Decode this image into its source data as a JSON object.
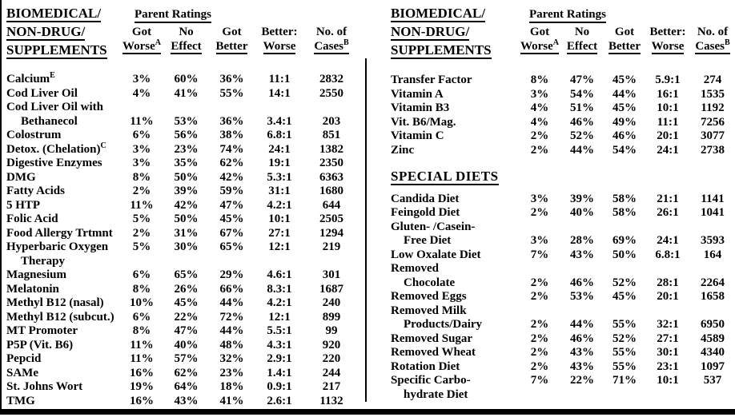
{
  "colors": {
    "ink": "#000000",
    "paper": "#ffffff"
  },
  "left_table": {
    "title_lines": [
      "BIOMEDICAL/",
      "NON-DRUG/",
      "SUPPLEMENTS"
    ],
    "group_header": "Parent Ratings",
    "columns": [
      {
        "line1": "Got",
        "line2": "Worse",
        "sup": "A"
      },
      {
        "line1": "No",
        "line2": "Effect"
      },
      {
        "line1": "Got",
        "line2": "Better"
      },
      {
        "line1": "Better:",
        "line2": "Worse"
      },
      {
        "line1": "No. of",
        "line2": "Cases",
        "sup": "B"
      }
    ],
    "sections": [
      {
        "rows": [
          {
            "name": "Calcium",
            "sup": "E",
            "values": [
              "3%",
              "60%",
              "36%",
              "11:1",
              "2832"
            ]
          },
          {
            "name": "Cod Liver Oil",
            "values": [
              "4%",
              "41%",
              "55%",
              "14:1",
              "2550"
            ]
          },
          {
            "name": "Cod Liver Oil with",
            "values": null
          },
          {
            "name": "Bethanecol",
            "indent": true,
            "values": [
              "11%",
              "53%",
              "36%",
              "3.4:1",
              "203"
            ]
          },
          {
            "name": "Colostrum",
            "values": [
              "6%",
              "56%",
              "38%",
              "6.8:1",
              "851"
            ]
          },
          {
            "name": "Detox. (Chelation)",
            "sup": "C",
            "values": [
              "3%",
              "23%",
              "74%",
              "24:1",
              "1382"
            ]
          },
          {
            "name": "Digestive Enzymes",
            "values": [
              "3%",
              "35%",
              "62%",
              "19:1",
              "2350"
            ]
          },
          {
            "name": "DMG",
            "values": [
              "8%",
              "50%",
              "42%",
              "5.3:1",
              "6363"
            ]
          },
          {
            "name": "Fatty Acids",
            "values": [
              "2%",
              "39%",
              "59%",
              "31:1",
              "1680"
            ]
          },
          {
            "name": "5 HTP",
            "values": [
              "11%",
              "42%",
              "47%",
              "4.2:1",
              "644"
            ]
          },
          {
            "name": "Folic Acid",
            "values": [
              "5%",
              "50%",
              "45%",
              "10:1",
              "2505"
            ]
          },
          {
            "name": "Food Allergy Trtmnt",
            "values": [
              "2%",
              "31%",
              "67%",
              "27:1",
              "1294"
            ]
          },
          {
            "name": "Hyperbaric Oxygen",
            "values": [
              "5%",
              "30%",
              "65%",
              "12:1",
              "219"
            ]
          },
          {
            "name": "Therapy",
            "indent": true,
            "values": null
          },
          {
            "name": "Magnesium",
            "values": [
              "6%",
              "65%",
              "29%",
              "4.6:1",
              "301"
            ]
          },
          {
            "name": "Melatonin",
            "values": [
              "8%",
              "26%",
              "66%",
              "8.3:1",
              "1687"
            ]
          },
          {
            "name": "Methyl B12 (nasal)",
            "values": [
              "10%",
              "45%",
              "44%",
              "4.2:1",
              "240"
            ]
          },
          {
            "name": "Methyl B12 (subcut.)",
            "values": [
              "6%",
              "22%",
              "72%",
              "12:1",
              "899"
            ]
          },
          {
            "name": "MT Promoter",
            "values": [
              "8%",
              "47%",
              "44%",
              "5.5:1",
              "99"
            ]
          },
          {
            "name": "P5P (Vit. B6)",
            "values": [
              "11%",
              "40%",
              "48%",
              "4.3:1",
              "920"
            ]
          },
          {
            "name": "Pepcid",
            "values": [
              "11%",
              "57%",
              "32%",
              "2.9:1",
              "220"
            ]
          },
          {
            "name": "SAMe",
            "values": [
              "16%",
              "62%",
              "23%",
              "1.4:1",
              "244"
            ]
          },
          {
            "name": "St. Johns Wort",
            "values": [
              "19%",
              "64%",
              "18%",
              "0.9:1",
              "217"
            ]
          },
          {
            "name": "TMG",
            "values": [
              "16%",
              "43%",
              "41%",
              "2.6:1",
              "1132"
            ]
          }
        ]
      }
    ]
  },
  "right_table": {
    "title_lines": [
      "BIOMEDICAL/",
      "NON-DRUG/",
      "SUPPLEMENTS"
    ],
    "group_header": "Parent Ratings",
    "columns": [
      {
        "line1": "Got",
        "line2": "Worse",
        "sup": "A"
      },
      {
        "line1": "No",
        "line2": "Effect"
      },
      {
        "line1": "Got",
        "line2": "Better"
      },
      {
        "line1": "Better:",
        "line2": "Worse"
      },
      {
        "line1": "No. of",
        "line2": "Cases",
        "sup": "B"
      }
    ],
    "sections": [
      {
        "rows": [
          {
            "name": "Transfer Factor",
            "values": [
              "8%",
              "47%",
              "45%",
              "5.9:1",
              "274"
            ]
          },
          {
            "name": "Vitamin A",
            "values": [
              "3%",
              "54%",
              "44%",
              "16:1",
              "1535"
            ]
          },
          {
            "name": "Vitamin B3",
            "values": [
              "4%",
              "51%",
              "45%",
              "10:1",
              "1192"
            ]
          },
          {
            "name": "Vit. B6/Mag.",
            "values": [
              "4%",
              "46%",
              "49%",
              "11:1",
              "7256"
            ]
          },
          {
            "name": "Vitamin C",
            "values": [
              "2%",
              "52%",
              "46%",
              "20:1",
              "3077"
            ]
          },
          {
            "name": "Zinc",
            "values": [
              "2%",
              "44%",
              "54%",
              "24:1",
              "2738"
            ]
          }
        ]
      },
      {
        "heading": "SPECIAL DIETS",
        "rows": [
          {
            "name": "Candida Diet",
            "values": [
              "3%",
              "39%",
              "58%",
              "21:1",
              "1141"
            ]
          },
          {
            "name": "Feingold Diet",
            "values": [
              "2%",
              "40%",
              "58%",
              "26:1",
              "1041"
            ]
          },
          {
            "name": "Gluten- /Casein-",
            "values": null
          },
          {
            "name": "Free Diet",
            "indent": true,
            "values": [
              "3%",
              "28%",
              "69%",
              "24:1",
              "3593"
            ]
          },
          {
            "name": "Low Oxalate Diet",
            "values": [
              "7%",
              "43%",
              "50%",
              "6.8:1",
              "164"
            ]
          },
          {
            "name": "Removed",
            "values": null
          },
          {
            "name": "Chocolate",
            "indent": true,
            "values": [
              "2%",
              "46%",
              "52%",
              "28:1",
              "2264"
            ]
          },
          {
            "name": "Removed Eggs",
            "values": [
              "2%",
              "53%",
              "45%",
              "20:1",
              "1658"
            ]
          },
          {
            "name": "Removed Milk",
            "values": null
          },
          {
            "name": "Products/Dairy",
            "indent": true,
            "values": [
              "2%",
              "44%",
              "55%",
              "32:1",
              "6950"
            ]
          },
          {
            "name": "Removed Sugar",
            "values": [
              "2%",
              "46%",
              "52%",
              "27:1",
              "4589"
            ]
          },
          {
            "name": "Removed Wheat",
            "values": [
              "2%",
              "43%",
              "55%",
              "30:1",
              "4340"
            ]
          },
          {
            "name": "Rotation Diet",
            "values": [
              "2%",
              "43%",
              "55%",
              "23:1",
              "1097"
            ]
          },
          {
            "name": "Specific Carbo-",
            "values": [
              "7%",
              "22%",
              "71%",
              "10:1",
              "537"
            ]
          },
          {
            "name": "hydrate Diet",
            "indent": true,
            "values": null
          }
        ]
      }
    ]
  }
}
